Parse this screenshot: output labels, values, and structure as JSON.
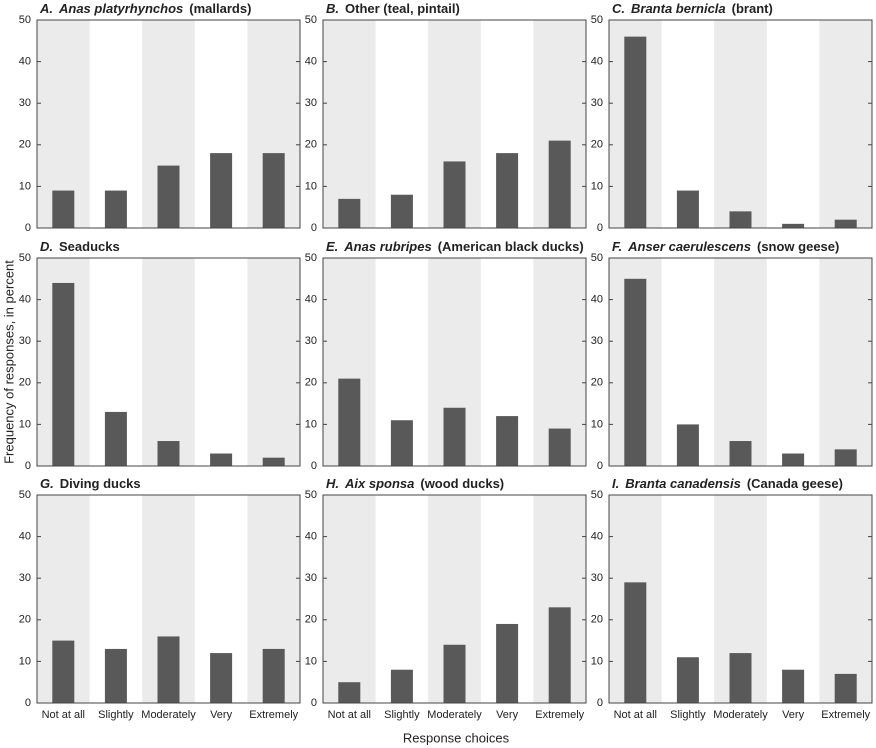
{
  "shared": {
    "xlabel": "Response choices",
    "ylabel": "Frequency of responses, in percent"
  },
  "chart_data": [
    {
      "type": "bar",
      "label": "A.",
      "title": [
        {
          "text": "Anas platyrhynchos",
          "italic": true
        },
        {
          "text": "(mallards)"
        }
      ],
      "values": [
        9,
        9,
        15,
        18,
        18
      ],
      "color": "#595959",
      "ylim": [
        0,
        50
      ],
      "yticks": [
        0,
        10,
        20,
        30,
        40,
        50
      ]
    },
    {
      "type": "bar",
      "label": "B.",
      "title": [
        {
          "text": "Other (teal, pintail)"
        }
      ],
      "values": [
        7,
        8,
        16,
        18,
        21
      ],
      "color": "#595959",
      "ylim": [
        0,
        50
      ],
      "yticks": [
        0,
        10,
        20,
        30,
        40,
        50
      ]
    },
    {
      "type": "bar",
      "label": "C.",
      "title": [
        {
          "text": "Branta bernicla",
          "italic": true
        },
        {
          "text": "(brant)"
        }
      ],
      "values": [
        46,
        9,
        4,
        1,
        2
      ],
      "color": "#595959",
      "ylim": [
        0,
        50
      ],
      "yticks": [
        0,
        10,
        20,
        30,
        40,
        50
      ]
    },
    {
      "type": "bar",
      "label": "D.",
      "title": [
        {
          "text": "Seaducks"
        }
      ],
      "values": [
        44,
        13,
        6,
        3,
        2
      ],
      "color": "#595959",
      "ylim": [
        0,
        50
      ],
      "yticks": [
        0,
        10,
        20,
        30,
        40,
        50
      ]
    },
    {
      "type": "bar",
      "label": "E.",
      "title": [
        {
          "text": "Anas rubripes",
          "italic": true
        },
        {
          "text": "(American black ducks)"
        }
      ],
      "values": [
        21,
        11,
        14,
        12,
        9
      ],
      "color": "#595959",
      "ylim": [
        0,
        50
      ],
      "yticks": [
        0,
        10,
        20,
        30,
        40,
        50
      ]
    },
    {
      "type": "bar",
      "label": "F.",
      "title": [
        {
          "text": "Anser caerulescens",
          "italic": true
        },
        {
          "text": "(snow geese)"
        }
      ],
      "values": [
        45,
        10,
        6,
        3,
        4
      ],
      "color": "#595959",
      "ylim": [
        0,
        50
      ],
      "yticks": [
        0,
        10,
        20,
        30,
        40,
        50
      ]
    },
    {
      "type": "bar",
      "label": "G.",
      "title": [
        {
          "text": "Diving ducks"
        }
      ],
      "categories": [
        "Not at all",
        "Slightly",
        "Moderately",
        "Very",
        "Extremely"
      ],
      "values": [
        15,
        13,
        16,
        12,
        13
      ],
      "color": "#595959",
      "ylim": [
        0,
        50
      ],
      "yticks": [
        0,
        10,
        20,
        30,
        40,
        50
      ]
    },
    {
      "type": "bar",
      "label": "H.",
      "title": [
        {
          "text": "Aix sponsa",
          "italic": true
        },
        {
          "text": "(wood ducks)"
        }
      ],
      "categories": [
        "Not at all",
        "Slightly",
        "Moderately",
        "Very",
        "Extremely"
      ],
      "values": [
        5,
        8,
        14,
        19,
        23
      ],
      "color": "#595959",
      "ylim": [
        0,
        50
      ],
      "yticks": [
        0,
        10,
        20,
        30,
        40,
        50
      ]
    },
    {
      "type": "bar",
      "label": "I.",
      "title": [
        {
          "text": "Branta canadensis",
          "italic": true
        },
        {
          "text": "(Canada geese)"
        }
      ],
      "categories": [
        "Not at all",
        "Slightly",
        "Moderately",
        "Very",
        "Extremely"
      ],
      "values": [
        29,
        11,
        12,
        8,
        7
      ],
      "color": "#595959",
      "ylim": [
        0,
        50
      ],
      "yticks": [
        0,
        10,
        20,
        30,
        40,
        50
      ]
    }
  ]
}
